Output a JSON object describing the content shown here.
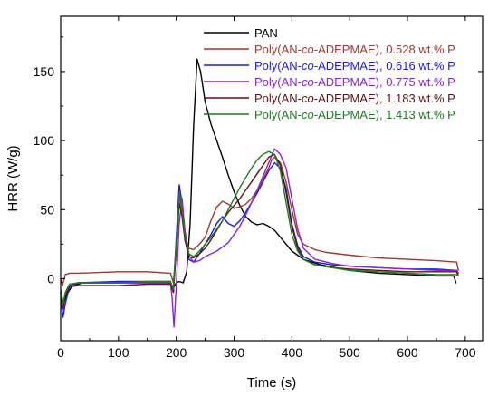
{
  "chart_data": {
    "type": "line",
    "xlabel": "Time (s)",
    "ylabel": "HRR (W/g)",
    "xlim": [
      0,
      730
    ],
    "ylim": [
      -45,
      190
    ],
    "xticks": [
      0,
      100,
      200,
      300,
      400,
      500,
      600,
      700
    ],
    "yticks": [
      0,
      50,
      100,
      150
    ],
    "grid": false,
    "legend_position": "top-right",
    "series": [
      {
        "name": "PAN",
        "color": "#000000",
        "points": [
          [
            0,
            -10
          ],
          [
            5,
            -18
          ],
          [
            10,
            -12
          ],
          [
            20,
            -5
          ],
          [
            40,
            -3
          ],
          [
            100,
            -3
          ],
          [
            150,
            -3
          ],
          [
            185,
            -3
          ],
          [
            190,
            -4
          ],
          [
            196,
            -6
          ],
          [
            200,
            -3
          ],
          [
            205,
            -2
          ],
          [
            212,
            -3
          ],
          [
            218,
            5
          ],
          [
            224,
            40
          ],
          [
            230,
            110
          ],
          [
            236,
            159
          ],
          [
            242,
            150
          ],
          [
            250,
            128
          ],
          [
            260,
            112
          ],
          [
            270,
            100
          ],
          [
            280,
            88
          ],
          [
            290,
            75
          ],
          [
            300,
            63
          ],
          [
            310,
            53
          ],
          [
            320,
            45
          ],
          [
            330,
            41
          ],
          [
            340,
            39
          ],
          [
            350,
            40
          ],
          [
            360,
            38
          ],
          [
            370,
            35
          ],
          [
            380,
            30
          ],
          [
            390,
            25
          ],
          [
            400,
            20
          ],
          [
            420,
            14
          ],
          [
            450,
            10
          ],
          [
            500,
            6
          ],
          [
            550,
            4
          ],
          [
            600,
            3
          ],
          [
            650,
            2
          ],
          [
            680,
            2
          ],
          [
            684,
            -3
          ]
        ]
      },
      {
        "name": "Poly(AN-co-ADEPMAE), 0.528 wt.% P",
        "color": "#9b3a2e",
        "points": [
          [
            0,
            0
          ],
          [
            3,
            -5
          ],
          [
            8,
            3
          ],
          [
            15,
            4
          ],
          [
            30,
            4
          ],
          [
            100,
            5
          ],
          [
            150,
            5
          ],
          [
            190,
            4
          ],
          [
            195,
            -3
          ],
          [
            200,
            25
          ],
          [
            205,
            60
          ],
          [
            210,
            50
          ],
          [
            215,
            30
          ],
          [
            222,
            22
          ],
          [
            230,
            21
          ],
          [
            240,
            25
          ],
          [
            250,
            30
          ],
          [
            260,
            42
          ],
          [
            270,
            52
          ],
          [
            280,
            56
          ],
          [
            290,
            54
          ],
          [
            300,
            51
          ],
          [
            310,
            52
          ],
          [
            320,
            54
          ],
          [
            330,
            58
          ],
          [
            340,
            64
          ],
          [
            350,
            72
          ],
          [
            360,
            80
          ],
          [
            365,
            86
          ],
          [
            370,
            88
          ],
          [
            380,
            84
          ],
          [
            390,
            70
          ],
          [
            400,
            50
          ],
          [
            410,
            32
          ],
          [
            420,
            25
          ],
          [
            440,
            21
          ],
          [
            460,
            19
          ],
          [
            500,
            17
          ],
          [
            550,
            15
          ],
          [
            600,
            14
          ],
          [
            650,
            13
          ],
          [
            685,
            12
          ],
          [
            688,
            6
          ]
        ]
      },
      {
        "name": "Poly(AN-co-ADEPMAE), 0.616 wt.% P",
        "color": "#1b1bd6",
        "points": [
          [
            0,
            -15
          ],
          [
            4,
            -28
          ],
          [
            8,
            -18
          ],
          [
            15,
            -6
          ],
          [
            30,
            -3
          ],
          [
            100,
            -2
          ],
          [
            150,
            -2
          ],
          [
            190,
            -2
          ],
          [
            195,
            -10
          ],
          [
            200,
            30
          ],
          [
            205,
            68
          ],
          [
            210,
            55
          ],
          [
            215,
            30
          ],
          [
            222,
            14
          ],
          [
            230,
            12
          ],
          [
            240,
            18
          ],
          [
            250,
            25
          ],
          [
            260,
            32
          ],
          [
            270,
            40
          ],
          [
            280,
            45
          ],
          [
            290,
            40
          ],
          [
            300,
            38
          ],
          [
            310,
            42
          ],
          [
            320,
            48
          ],
          [
            330,
            55
          ],
          [
            340,
            62
          ],
          [
            350,
            70
          ],
          [
            360,
            78
          ],
          [
            370,
            84
          ],
          [
            380,
            80
          ],
          [
            390,
            65
          ],
          [
            400,
            40
          ],
          [
            410,
            24
          ],
          [
            420,
            16
          ],
          [
            440,
            12
          ],
          [
            470,
            10
          ],
          [
            500,
            9
          ],
          [
            550,
            8
          ],
          [
            600,
            7
          ],
          [
            650,
            7
          ],
          [
            685,
            6
          ],
          [
            688,
            4
          ]
        ]
      },
      {
        "name": "Poly(AN-co-ADEPMAE), 0.775 wt.% P",
        "color": "#8c24d4",
        "points": [
          [
            0,
            -10
          ],
          [
            4,
            -20
          ],
          [
            8,
            -12
          ],
          [
            15,
            -5
          ],
          [
            30,
            -3
          ],
          [
            100,
            -3
          ],
          [
            150,
            -3
          ],
          [
            190,
            -3
          ],
          [
            193,
            -15
          ],
          [
            196,
            -35
          ],
          [
            200,
            -5
          ],
          [
            205,
            40
          ],
          [
            210,
            58
          ],
          [
            215,
            35
          ],
          [
            222,
            17
          ],
          [
            230,
            12
          ],
          [
            240,
            13
          ],
          [
            250,
            16
          ],
          [
            260,
            18
          ],
          [
            270,
            20
          ],
          [
            280,
            23
          ],
          [
            290,
            26
          ],
          [
            300,
            32
          ],
          [
            310,
            38
          ],
          [
            320,
            46
          ],
          [
            330,
            55
          ],
          [
            340,
            64
          ],
          [
            350,
            74
          ],
          [
            360,
            84
          ],
          [
            370,
            94
          ],
          [
            380,
            90
          ],
          [
            390,
            80
          ],
          [
            400,
            58
          ],
          [
            410,
            36
          ],
          [
            420,
            22
          ],
          [
            440,
            14
          ],
          [
            470,
            11
          ],
          [
            500,
            9
          ],
          [
            550,
            8
          ],
          [
            600,
            7
          ],
          [
            650,
            6
          ],
          [
            685,
            6
          ],
          [
            688,
            4
          ]
        ]
      },
      {
        "name": "Poly(AN-co-ADEPMAE), 1.183 wt.% P",
        "color": "#5c1414",
        "points": [
          [
            0,
            -10
          ],
          [
            4,
            -22
          ],
          [
            8,
            -12
          ],
          [
            15,
            -6
          ],
          [
            30,
            -5
          ],
          [
            100,
            -5
          ],
          [
            150,
            -4
          ],
          [
            190,
            -4
          ],
          [
            195,
            -10
          ],
          [
            200,
            20
          ],
          [
            205,
            55
          ],
          [
            210,
            45
          ],
          [
            215,
            28
          ],
          [
            222,
            16
          ],
          [
            230,
            15
          ],
          [
            240,
            18
          ],
          [
            250,
            22
          ],
          [
            260,
            28
          ],
          [
            270,
            35
          ],
          [
            280,
            42
          ],
          [
            290,
            48
          ],
          [
            300,
            53
          ],
          [
            310,
            58
          ],
          [
            320,
            64
          ],
          [
            330,
            70
          ],
          [
            340,
            76
          ],
          [
            350,
            82
          ],
          [
            360,
            88
          ],
          [
            370,
            90
          ],
          [
            380,
            82
          ],
          [
            390,
            62
          ],
          [
            400,
            38
          ],
          [
            410,
            22
          ],
          [
            420,
            14
          ],
          [
            440,
            10
          ],
          [
            470,
            8
          ],
          [
            500,
            7
          ],
          [
            550,
            6
          ],
          [
            600,
            5
          ],
          [
            650,
            5
          ],
          [
            685,
            5
          ],
          [
            688,
            2
          ]
        ]
      },
      {
        "name": "Poly(AN-co-ADEPMAE), 1.413 wt.% P",
        "color": "#1f7a1f",
        "points": [
          [
            0,
            -8
          ],
          [
            4,
            -18
          ],
          [
            8,
            -10
          ],
          [
            15,
            -4
          ],
          [
            30,
            -3
          ],
          [
            100,
            -3
          ],
          [
            150,
            -2
          ],
          [
            190,
            -2
          ],
          [
            195,
            -8
          ],
          [
            200,
            25
          ],
          [
            205,
            62
          ],
          [
            210,
            50
          ],
          [
            215,
            32
          ],
          [
            222,
            18
          ],
          [
            230,
            16
          ],
          [
            240,
            20
          ],
          [
            250,
            25
          ],
          [
            260,
            30
          ],
          [
            270,
            36
          ],
          [
            280,
            42
          ],
          [
            290,
            50
          ],
          [
            300,
            58
          ],
          [
            310,
            66
          ],
          [
            320,
            73
          ],
          [
            330,
            80
          ],
          [
            340,
            86
          ],
          [
            350,
            90
          ],
          [
            360,
            92
          ],
          [
            370,
            90
          ],
          [
            380,
            78
          ],
          [
            390,
            55
          ],
          [
            400,
            32
          ],
          [
            410,
            20
          ],
          [
            420,
            14
          ],
          [
            440,
            10
          ],
          [
            470,
            8
          ],
          [
            500,
            6
          ],
          [
            550,
            5
          ],
          [
            600,
            4
          ],
          [
            650,
            3
          ],
          [
            685,
            3
          ],
          [
            688,
            2
          ]
        ]
      }
    ]
  },
  "legend_parts": [
    {
      "pre": "PAN",
      "italic": "",
      "post": ""
    },
    {
      "pre": "Poly(AN-",
      "italic": "co",
      "post": "-ADEPMAE), 0.528 wt.% P"
    },
    {
      "pre": "Poly(AN-",
      "italic": "co",
      "post": "-ADEPMAE), 0.616 wt.% P"
    },
    {
      "pre": "Poly(AN-",
      "italic": "co",
      "post": "-ADEPMAE), 0.775 wt.% P"
    },
    {
      "pre": "Poly(AN-",
      "italic": "co",
      "post": "-ADEPMAE), 1.183 wt.% P"
    },
    {
      "pre": "Poly(AN-",
      "italic": "co",
      "post": "-ADEPMAE), 1.413 wt.% P"
    }
  ]
}
